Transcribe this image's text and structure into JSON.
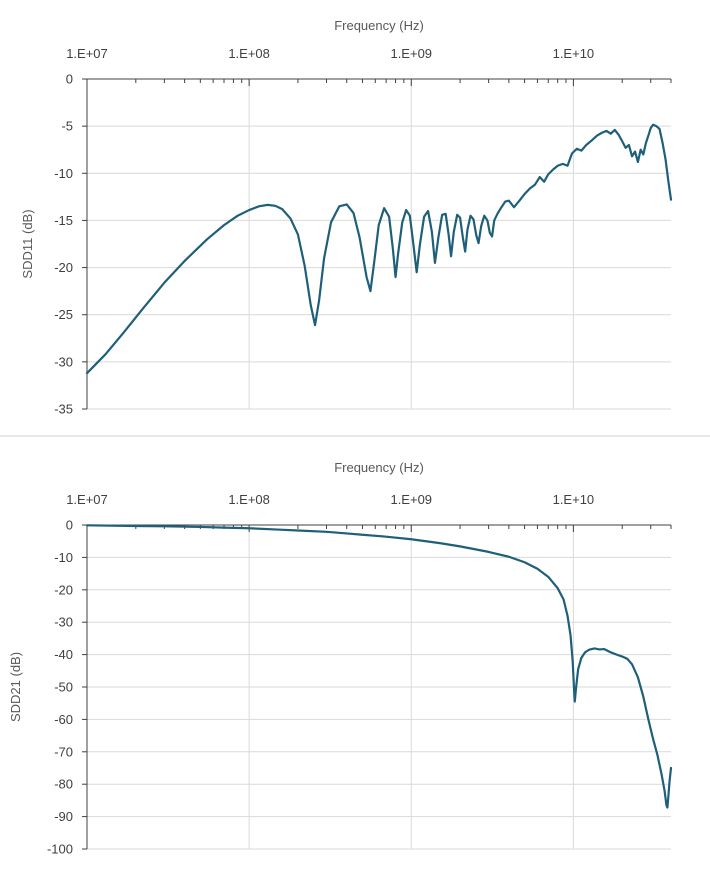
{
  "chart_data": [
    {
      "type": "line",
      "xlabel": "Frequency (Hz)",
      "ylabel": "SDD11 (dB)",
      "x_scale": "log",
      "x_axis_position": "top",
      "xlim": [
        10000000.0,
        40000000000.0
      ],
      "ylim": [
        -35,
        0
      ],
      "y_step": 5,
      "x_major_ticks": [
        10000000.0,
        100000000.0,
        1000000000.0,
        10000000000.0
      ],
      "x_tick_labels": [
        "1.E+07",
        "1.E+08",
        "1.E+09",
        "1.E+10"
      ],
      "y_tick_labels": [
        "0",
        "-5",
        "-10",
        "-15",
        "-20",
        "-25",
        "-30",
        "-35"
      ],
      "grid": true,
      "legend": "none",
      "series": [
        {
          "color": "#1f5f7a",
          "points": [
            [
              10000000.0,
              -31.2
            ],
            [
              13000000.0,
              -29.2
            ],
            [
              17000000.0,
              -26.8
            ],
            [
              22000000.0,
              -24.4
            ],
            [
              30000000.0,
              -21.6
            ],
            [
              40000000.0,
              -19.3
            ],
            [
              55000000.0,
              -17.0
            ],
            [
              70000000.0,
              -15.5
            ],
            [
              85000000.0,
              -14.5
            ],
            [
              100000000.0,
              -13.9
            ],
            [
              115000000.0,
              -13.5
            ],
            [
              130000000.0,
              -13.35
            ],
            [
              145000000.0,
              -13.45
            ],
            [
              160000000.0,
              -13.8
            ],
            [
              180000000.0,
              -14.8
            ],
            [
              200000000.0,
              -16.5
            ],
            [
              220000000.0,
              -19.8
            ],
            [
              240000000.0,
              -24.0
            ],
            [
              255000000.0,
              -26.1
            ],
            [
              270000000.0,
              -23.5
            ],
            [
              290000000.0,
              -19.0
            ],
            [
              320000000.0,
              -15.2
            ],
            [
              360000000.0,
              -13.5
            ],
            [
              400000000.0,
              -13.3
            ],
            [
              440000000.0,
              -14.2
            ],
            [
              480000000.0,
              -16.8
            ],
            [
              530000000.0,
              -21.0
            ],
            [
              560000000.0,
              -22.5
            ],
            [
              590000000.0,
              -19.5
            ],
            [
              630000000.0,
              -15.5
            ],
            [
              680000000.0,
              -13.7
            ],
            [
              730000000.0,
              -14.6
            ],
            [
              770000000.0,
              -18.0
            ],
            [
              800000000.0,
              -21.0
            ],
            [
              830000000.0,
              -18.5
            ],
            [
              880000000.0,
              -15.2
            ],
            [
              930000000.0,
              -13.9
            ],
            [
              980000000.0,
              -14.5
            ],
            [
              1030000000.0,
              -17.5
            ],
            [
              1080000000.0,
              -20.5
            ],
            [
              1130000000.0,
              -17.6
            ],
            [
              1200000000.0,
              -14.6
            ],
            [
              1270000000.0,
              -14.0
            ],
            [
              1340000000.0,
              -16.2
            ],
            [
              1400000000.0,
              -19.5
            ],
            [
              1470000000.0,
              -16.8
            ],
            [
              1550000000.0,
              -14.4
            ],
            [
              1630000000.0,
              -14.3
            ],
            [
              1700000000.0,
              -16.5
            ],
            [
              1760000000.0,
              -18.8
            ],
            [
              1830000000.0,
              -16.2
            ],
            [
              1920000000.0,
              -14.4
            ],
            [
              2000000000.0,
              -14.7
            ],
            [
              2080000000.0,
              -16.8
            ],
            [
              2150000000.0,
              -18.3
            ],
            [
              2220000000.0,
              -16.0
            ],
            [
              2320000000.0,
              -14.5
            ],
            [
              2420000000.0,
              -14.9
            ],
            [
              2520000000.0,
              -16.6
            ],
            [
              2600000000.0,
              -17.4
            ],
            [
              2700000000.0,
              -15.6
            ],
            [
              2820000000.0,
              -14.5
            ],
            [
              2950000000.0,
              -15.0
            ],
            [
              3050000000.0,
              -16.3
            ],
            [
              3150000000.0,
              -16.7
            ],
            [
              3250000000.0,
              -15.0
            ],
            [
              3400000000.0,
              -14.3
            ],
            [
              3600000000.0,
              -13.6
            ],
            [
              3800000000.0,
              -13.0
            ],
            [
              4000000000.0,
              -12.9
            ],
            [
              4300000000.0,
              -13.6
            ],
            [
              4600000000.0,
              -13.0
            ],
            [
              5000000000.0,
              -12.2
            ],
            [
              5400000000.0,
              -11.6
            ],
            [
              5800000000.0,
              -11.2
            ],
            [
              6200000000.0,
              -10.4
            ],
            [
              6600000000.0,
              -10.9
            ],
            [
              7000000000.0,
              -10.1
            ],
            [
              7500000000.0,
              -9.6
            ],
            [
              8000000000.0,
              -9.2
            ],
            [
              8600000000.0,
              -9.0
            ],
            [
              9200000000.0,
              -9.2
            ],
            [
              9800000000.0,
              -7.9
            ],
            [
              10500000000.0,
              -7.4
            ],
            [
              11200000000.0,
              -7.6
            ],
            [
              12000000000.0,
              -7.0
            ],
            [
              13000000000.0,
              -6.5
            ],
            [
              14000000000.0,
              -6.0
            ],
            [
              15000000000.0,
              -5.7
            ],
            [
              16000000000.0,
              -5.5
            ],
            [
              17000000000.0,
              -5.8
            ],
            [
              18000000000.0,
              -5.4
            ],
            [
              19000000000.0,
              -5.9
            ],
            [
              20000000000.0,
              -6.6
            ],
            [
              21000000000.0,
              -7.3
            ],
            [
              22000000000.0,
              -7.0
            ],
            [
              23000000000.0,
              -8.2
            ],
            [
              24000000000.0,
              -7.7
            ],
            [
              25000000000.0,
              -8.8
            ],
            [
              26000000000.0,
              -7.5
            ],
            [
              27000000000.0,
              -8.0
            ],
            [
              28000000000.0,
              -6.8
            ],
            [
              29000000000.0,
              -6.0
            ],
            [
              30000000000.0,
              -5.2
            ],
            [
              31000000000.0,
              -4.85
            ],
            [
              32500000000.0,
              -5.0
            ],
            [
              34000000000.0,
              -5.3
            ],
            [
              35500000000.0,
              -6.8
            ],
            [
              37000000000.0,
              -8.5
            ],
            [
              38500000000.0,
              -10.8
            ],
            [
              40000000000.0,
              -12.8
            ]
          ]
        }
      ]
    },
    {
      "type": "line",
      "xlabel": "Frequency (Hz)",
      "ylabel": "SDD21 (dB)",
      "x_scale": "log",
      "x_axis_position": "top",
      "xlim": [
        10000000.0,
        40000000000.0
      ],
      "ylim": [
        -100,
        0
      ],
      "y_step": 10,
      "x_major_ticks": [
        10000000.0,
        100000000.0,
        1000000000.0,
        10000000000.0
      ],
      "x_tick_labels": [
        "1.E+07",
        "1.E+08",
        "1.E+09",
        "1.E+10"
      ],
      "y_tick_labels": [
        "0",
        "-10",
        "-20",
        "-30",
        "-40",
        "-50",
        "-60",
        "-70",
        "-80",
        "-90",
        "-100"
      ],
      "grid": true,
      "legend": "none",
      "series": [
        {
          "color": "#1f5f7a",
          "points": [
            [
              10000000.0,
              -0.1
            ],
            [
              20000000.0,
              -0.3
            ],
            [
              30000000.0,
              -0.4
            ],
            [
              50000000.0,
              -0.6
            ],
            [
              70000000.0,
              -0.8
            ],
            [
              100000000.0,
              -1.0
            ],
            [
              150000000.0,
              -1.4
            ],
            [
              200000000.0,
              -1.7
            ],
            [
              300000000.0,
              -2.1
            ],
            [
              400000000.0,
              -2.6
            ],
            [
              500000000.0,
              -3.0
            ],
            [
              700000000.0,
              -3.6
            ],
            [
              1000000000.0,
              -4.4
            ],
            [
              1500000000.0,
              -5.6
            ],
            [
              2000000000.0,
              -6.6
            ],
            [
              3000000000.0,
              -8.3
            ],
            [
              4000000000.0,
              -9.8
            ],
            [
              5000000000.0,
              -11.5
            ],
            [
              6000000000.0,
              -13.5
            ],
            [
              7000000000.0,
              -16.0
            ],
            [
              8000000000.0,
              -19.5
            ],
            [
              8700000000.0,
              -23.0
            ],
            [
              9200000000.0,
              -28.0
            ],
            [
              9600000000.0,
              -34.0
            ],
            [
              9900000000.0,
              -42.0
            ],
            [
              10100000000.0,
              -51.0
            ],
            [
              10200000000.0,
              -54.5
            ],
            [
              10400000000.0,
              -50.0
            ],
            [
              10700000000.0,
              -44.5
            ],
            [
              11200000000.0,
              -41.0
            ],
            [
              11800000000.0,
              -39.3
            ],
            [
              12500000000.0,
              -38.5
            ],
            [
              13500000000.0,
              -38.1
            ],
            [
              14500000000.0,
              -38.4
            ],
            [
              15500000000.0,
              -38.3
            ],
            [
              17000000000.0,
              -39.3
            ],
            [
              18500000000.0,
              -40.0
            ],
            [
              20000000000.0,
              -40.6
            ],
            [
              21500000000.0,
              -41.3
            ],
            [
              23000000000.0,
              -43.0
            ],
            [
              25000000000.0,
              -47.0
            ],
            [
              27000000000.0,
              -53.0
            ],
            [
              29000000000.0,
              -60.0
            ],
            [
              31000000000.0,
              -66.0
            ],
            [
              33000000000.0,
              -71.0
            ],
            [
              35000000000.0,
              -77.0
            ],
            [
              36500000000.0,
              -82.0
            ],
            [
              37500000000.0,
              -86.5
            ],
            [
              38000000000.0,
              -87.2
            ],
            [
              38500000000.0,
              -84.0
            ],
            [
              39200000000.0,
              -79.0
            ],
            [
              40000000000.0,
              -75.0
            ]
          ]
        }
      ]
    }
  ]
}
